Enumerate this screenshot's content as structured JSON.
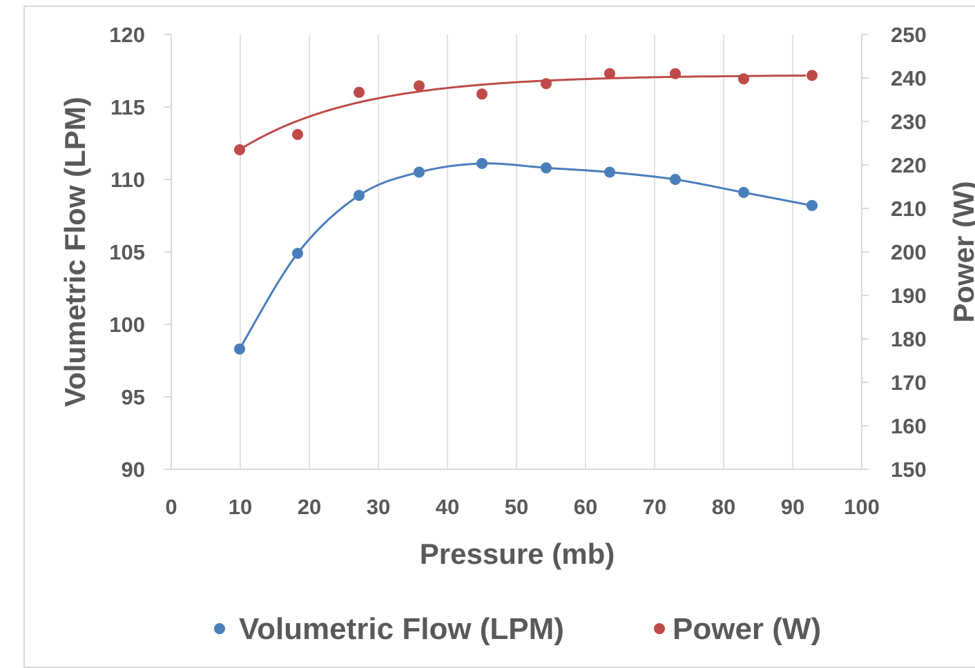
{
  "colors": {
    "volumetric_flow": "#4a7ebb",
    "power": "#be4b48",
    "gridline": "#d9d9d9",
    "text": "#595959"
  },
  "chart_data": {
    "type": "scatter",
    "xlabel": "Pressure (mb)",
    "ylabel_left": "Volumetric Flow (LPM)",
    "ylabel_right": "Power (W)",
    "xlim": [
      0,
      100
    ],
    "xticks": [
      0,
      10,
      20,
      30,
      40,
      50,
      60,
      70,
      80,
      90,
      100
    ],
    "ylim_left": [
      90,
      120
    ],
    "yticks_left": [
      90,
      95,
      100,
      105,
      110,
      115,
      120
    ],
    "ylim_right": [
      150,
      250
    ],
    "yticks_right": [
      150,
      160,
      170,
      180,
      190,
      200,
      210,
      220,
      230,
      240,
      250
    ],
    "grid": "vertical",
    "legend_position": "bottom",
    "trendlines": true,
    "series": [
      {
        "name": "Volumetric Flow (LPM)",
        "axis": "left",
        "color": "#4a7ebb",
        "x": [
          9.9,
          18.3,
          27.2,
          35.9,
          45.0,
          54.3,
          63.5,
          73.0,
          82.9,
          92.8
        ],
        "y": [
          98.3,
          104.9,
          108.9,
          110.5,
          111.1,
          110.8,
          110.5,
          110.0,
          109.1,
          108.2
        ]
      },
      {
        "name": "Power (W)",
        "axis": "right",
        "color": "#be4b48",
        "x": [
          9.9,
          18.3,
          27.2,
          35.9,
          45.0,
          54.3,
          63.5,
          73.0,
          82.9,
          92.8
        ],
        "y": [
          223.5,
          227.0,
          236.7,
          238.2,
          236.3,
          238.7,
          241.0,
          241.0,
          239.8,
          240.6
        ]
      }
    ]
  }
}
